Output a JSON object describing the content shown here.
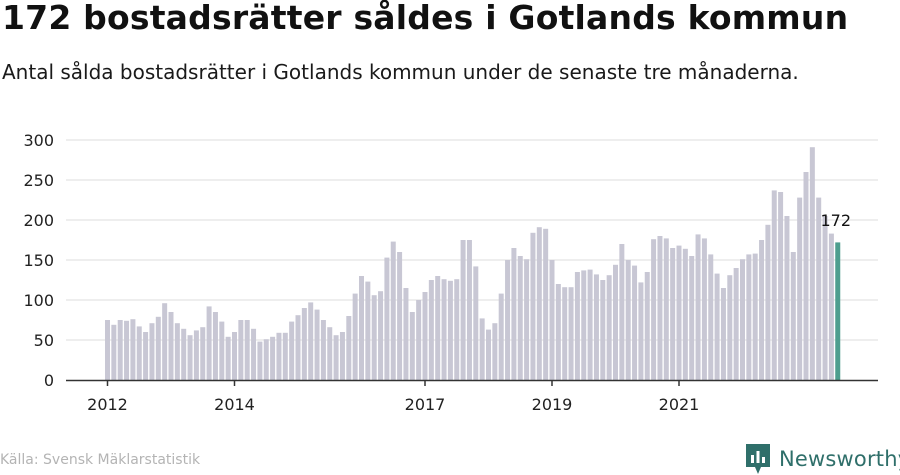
{
  "header": {
    "title": "172 bostadsrätter såldes i Gotlands kommun",
    "subtitle": "Antal sålda bostadsrätter i Gotlands kommun under de senaste tre månaderna."
  },
  "footer": {
    "source": "Källa: Svensk Mäklarstatistik",
    "brand": "Newsworthy",
    "brand_icon": "newsworthy-logo-icon"
  },
  "colors": {
    "bar": "#c8c7d4",
    "highlight": "#4e9e8e",
    "grid": "#dddddd",
    "axis": "#333333",
    "brand": "#2f6f6a"
  },
  "chart_data": {
    "type": "bar",
    "title": "172 bostadsrätter såldes i Gotlands kommun",
    "xlabel": "",
    "ylabel": "",
    "ylim": [
      0,
      300
    ],
    "yticks": [
      0,
      50,
      100,
      150,
      200,
      250,
      300
    ],
    "grid": true,
    "x_start": "2012-01",
    "x_step": "1 month",
    "xtick_labels": [
      {
        "label": "2012",
        "index": 0
      },
      {
        "label": "2014",
        "index": 20
      },
      {
        "label": "2017",
        "index": 50
      },
      {
        "label": "2019",
        "index": 70
      },
      {
        "label": "2021",
        "index": 90
      }
    ],
    "values": [
      75,
      69,
      75,
      74,
      76,
      67,
      60,
      71,
      79,
      96,
      85,
      71,
      64,
      56,
      62,
      66,
      92,
      85,
      73,
      54,
      60,
      75,
      75,
      64,
      48,
      51,
      54,
      59,
      59,
      73,
      81,
      90,
      97,
      88,
      75,
      66,
      56,
      60,
      80,
      108,
      130,
      123,
      106,
      111,
      153,
      173,
      160,
      115,
      85,
      100,
      110,
      125,
      130,
      126,
      124,
      126,
      175,
      175,
      142,
      77,
      63,
      71,
      108,
      150,
      165,
      155,
      151,
      184,
      191,
      189,
      150,
      120,
      116,
      116,
      135,
      137,
      138,
      132,
      125,
      131,
      144,
      170,
      150,
      143,
      122,
      135,
      176,
      180,
      177,
      165,
      168,
      164,
      155,
      182,
      177,
      157,
      133,
      115,
      131,
      140,
      151,
      157,
      158,
      175,
      194,
      237,
      235,
      205,
      160,
      228,
      260,
      291,
      228,
      205,
      183,
      172
    ],
    "highlight_index": 115,
    "annotation": "172"
  }
}
